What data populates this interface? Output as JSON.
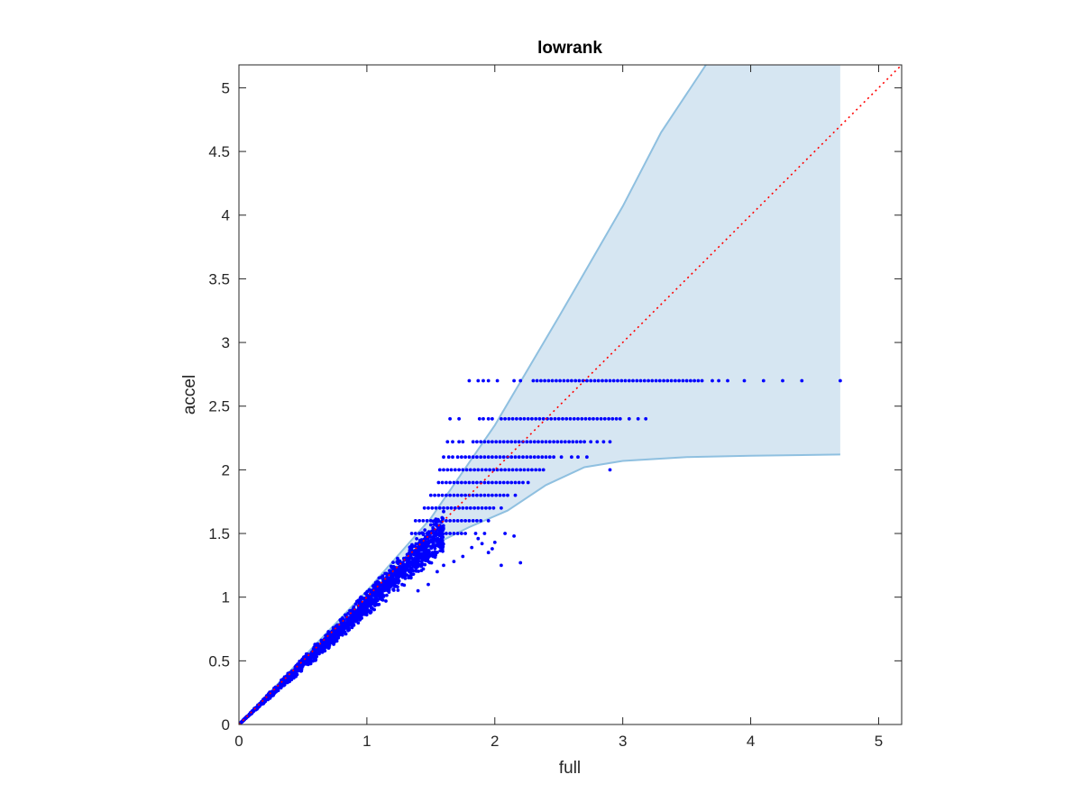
{
  "chart_data": {
    "type": "scatter",
    "title": "lowrank",
    "xlabel": "full",
    "ylabel": "accel",
    "xlim": [
      0,
      5.18
    ],
    "ylim": [
      0,
      5.18
    ],
    "xticks": [
      0,
      1,
      2,
      3,
      4,
      5
    ],
    "yticks": [
      0,
      0.5,
      1,
      1.5,
      2,
      2.5,
      3,
      3.5,
      4,
      4.5,
      5
    ],
    "xtick_labels": [
      "0",
      "1",
      "2",
      "3",
      "4",
      "5"
    ],
    "ytick_labels": [
      "0",
      "0.5",
      "1",
      "1.5",
      "2",
      "2.5",
      "3",
      "3.5",
      "4",
      "4.5",
      "5"
    ],
    "grid": false,
    "box": true,
    "colors": {
      "points": "#0000ff",
      "band_fill": "#d6e6f2",
      "band_edge": "#8fc0e0",
      "reference_line": "#ff0000",
      "axes": "#262626"
    },
    "confidence_band": {
      "upper": [
        [
          0.0,
          0.0
        ],
        [
          1.0,
          1.05
        ],
        [
          1.5,
          1.62
        ],
        [
          2.0,
          2.35
        ],
        [
          2.5,
          3.2
        ],
        [
          3.0,
          4.07
        ],
        [
          3.3,
          4.65
        ],
        [
          3.65,
          5.18
        ],
        [
          4.7,
          5.18
        ]
      ],
      "lower": [
        [
          0.0,
          0.0
        ],
        [
          1.0,
          0.95
        ],
        [
          1.5,
          1.4
        ],
        [
          1.8,
          1.55
        ],
        [
          2.1,
          1.68
        ],
        [
          2.4,
          1.88
        ],
        [
          2.7,
          2.02
        ],
        [
          3.0,
          2.07
        ],
        [
          3.5,
          2.1
        ],
        [
          4.0,
          2.11
        ],
        [
          4.7,
          2.12
        ]
      ]
    },
    "reference_line": {
      "style": "dotted",
      "from": [
        0,
        0
      ],
      "to": [
        5.18,
        5.18
      ]
    },
    "bands": [
      {
        "y": 2.7,
        "x": [
          1.8,
          1.87,
          1.91,
          1.95,
          2.02,
          2.15,
          2.2,
          2.3,
          2.33,
          2.36,
          2.39,
          2.42,
          2.45,
          2.48,
          2.51,
          2.54,
          2.57,
          2.6,
          2.63,
          2.66,
          2.69,
          2.72,
          2.75,
          2.78,
          2.81,
          2.84,
          2.87,
          2.9,
          2.93,
          2.96,
          2.99,
          3.02,
          3.05,
          3.08,
          3.11,
          3.14,
          3.17,
          3.2,
          3.23,
          3.26,
          3.29,
          3.32,
          3.35,
          3.38,
          3.41,
          3.44,
          3.47,
          3.5,
          3.53,
          3.56,
          3.59,
          3.62,
          3.7,
          3.75,
          3.82,
          3.95,
          4.1,
          4.25,
          4.4,
          4.7
        ]
      },
      {
        "y": 2.4,
        "x": [
          1.65,
          1.72,
          1.88,
          1.91,
          1.95,
          1.98,
          2.05,
          2.08,
          2.11,
          2.14,
          2.17,
          2.2,
          2.23,
          2.26,
          2.29,
          2.32,
          2.35,
          2.38,
          2.41,
          2.44,
          2.47,
          2.5,
          2.53,
          2.56,
          2.59,
          2.62,
          2.65,
          2.68,
          2.71,
          2.74,
          2.77,
          2.8,
          2.83,
          2.86,
          2.89,
          2.92,
          2.95,
          2.98,
          3.05,
          3.12,
          3.18
        ]
      },
      {
        "y": 2.22,
        "x": [
          1.63,
          1.67,
          1.72,
          1.75,
          1.83,
          1.86,
          1.89,
          1.92,
          1.95,
          1.98,
          2.01,
          2.04,
          2.07,
          2.1,
          2.13,
          2.16,
          2.19,
          2.22,
          2.25,
          2.28,
          2.31,
          2.34,
          2.37,
          2.4,
          2.43,
          2.46,
          2.49,
          2.52,
          2.55,
          2.58,
          2.61,
          2.64,
          2.67,
          2.7,
          2.75,
          2.8,
          2.85,
          2.9
        ]
      },
      {
        "y": 2.1,
        "x": [
          1.6,
          1.64,
          1.67,
          1.71,
          1.74,
          1.77,
          1.8,
          1.83,
          1.86,
          1.89,
          1.92,
          1.95,
          1.98,
          2.01,
          2.04,
          2.07,
          2.1,
          2.13,
          2.16,
          2.19,
          2.22,
          2.25,
          2.28,
          2.31,
          2.34,
          2.37,
          2.4,
          2.43,
          2.46,
          2.52,
          2.6,
          2.65,
          2.72
        ]
      },
      {
        "y": 2.0,
        "x": [
          1.57,
          1.6,
          1.63,
          1.66,
          1.69,
          1.72,
          1.75,
          1.78,
          1.81,
          1.84,
          1.87,
          1.9,
          1.93,
          1.96,
          1.99,
          2.02,
          2.05,
          2.08,
          2.11,
          2.14,
          2.17,
          2.2,
          2.23,
          2.26,
          2.29,
          2.32,
          2.35,
          2.38,
          2.9
        ]
      },
      {
        "y": 1.9,
        "x": [
          1.56,
          1.59,
          1.62,
          1.65,
          1.68,
          1.71,
          1.74,
          1.77,
          1.8,
          1.83,
          1.86,
          1.89,
          1.92,
          1.95,
          1.98,
          2.01,
          2.04,
          2.07,
          2.1,
          2.13,
          2.16,
          2.19,
          2.22,
          2.26
        ]
      },
      {
        "y": 1.8,
        "x": [
          1.5,
          1.53,
          1.56,
          1.59,
          1.62,
          1.65,
          1.68,
          1.71,
          1.74,
          1.77,
          1.8,
          1.83,
          1.86,
          1.89,
          1.92,
          1.95,
          1.98,
          2.01,
          2.04,
          2.07,
          2.1,
          2.16
        ]
      },
      {
        "y": 1.7,
        "x": [
          1.45,
          1.48,
          1.51,
          1.54,
          1.57,
          1.6,
          1.63,
          1.66,
          1.69,
          1.72,
          1.75,
          1.78,
          1.81,
          1.84,
          1.87,
          1.9,
          1.93,
          1.96,
          1.99,
          2.05
        ]
      },
      {
        "y": 1.6,
        "x": [
          1.38,
          1.41,
          1.44,
          1.47,
          1.5,
          1.53,
          1.56,
          1.59,
          1.62,
          1.65,
          1.68,
          1.71,
          1.74,
          1.77,
          1.8,
          1.83,
          1.86,
          1.89,
          1.95
        ]
      },
      {
        "y": 1.5,
        "x": [
          1.35,
          1.38,
          1.41,
          1.44,
          1.47,
          1.5,
          1.53,
          1.56,
          1.59,
          1.62,
          1.65,
          1.68,
          1.71,
          1.74,
          1.77,
          1.85,
          1.92,
          2.08
        ]
      }
    ],
    "outliers": [
      [
        2.2,
        1.27
      ],
      [
        2.05,
        1.25
      ],
      [
        1.95,
        1.35
      ],
      [
        1.9,
        1.42
      ],
      [
        1.87,
        1.46
      ],
      [
        1.98,
        1.38
      ],
      [
        2.0,
        1.43
      ],
      [
        1.82,
        1.39
      ],
      [
        1.75,
        1.32
      ],
      [
        1.68,
        1.28
      ],
      [
        1.6,
        1.25
      ],
      [
        1.55,
        1.2
      ],
      [
        1.48,
        1.1
      ],
      [
        1.4,
        1.05
      ],
      [
        2.15,
        1.48
      ]
    ],
    "cloud": {
      "count": 1700,
      "max_x": 1.6,
      "spread_lower": 0.16,
      "spread_upper": 0.06,
      "seed": 7
    }
  }
}
